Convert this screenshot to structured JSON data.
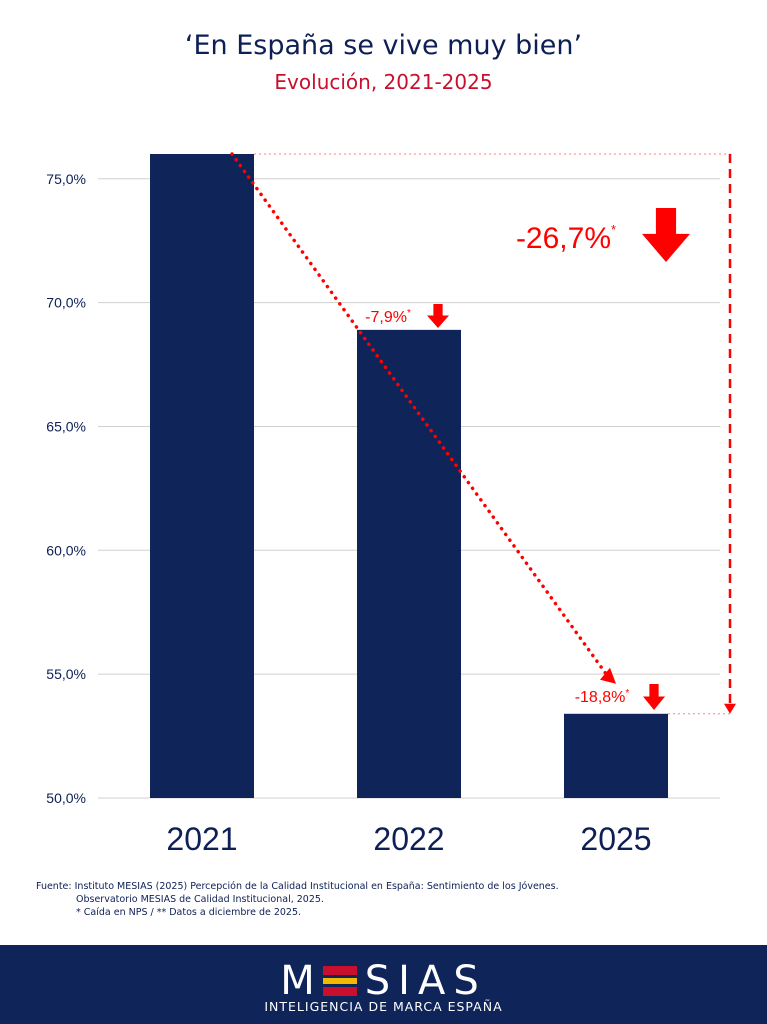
{
  "header": {
    "title": "‘En España se vive muy bien’",
    "subtitle": "Evolución, 2021-2025"
  },
  "chart_data": {
    "type": "bar",
    "categories": [
      "2021",
      "2022",
      "2025"
    ],
    "values": [
      76.0,
      68.9,
      53.4
    ],
    "ylim": [
      50,
      76
    ],
    "yticks": [
      50,
      55,
      60,
      65,
      70,
      75
    ],
    "ytick_labels": [
      "50,0%",
      "55,0%",
      "60,0%",
      "65,0%",
      "70,0%",
      "75,0%"
    ],
    "grid": true,
    "bar_color": "#0f2459",
    "annotations": [
      {
        "label": "-7,9%",
        "marker": "*",
        "category": "2022"
      },
      {
        "label": "-18,8%",
        "marker": "*",
        "category": "2025"
      },
      {
        "label": "-26,7%",
        "marker": "*",
        "span": [
          "2021",
          "2025"
        ]
      }
    ],
    "accent_color": "#ff0000"
  },
  "source": {
    "line1": "Fuente: Instituto MESIAS (2025) Percepción de la Calidad Institucional en España: Sentimiento de los Jóvenes.",
    "line2": "Observatorio MESIAS de Calidad Institucional, 2025.",
    "line3": "* Caída en NPS / ** Datos a diciembre de 2025."
  },
  "footer": {
    "logo_rest": "SIAS",
    "logo_first": "M",
    "tagline": "INTELIGENCIA DE MARCA ESPAÑA"
  }
}
